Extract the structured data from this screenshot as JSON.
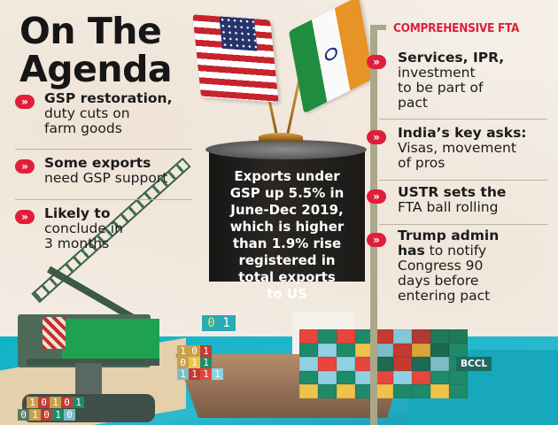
{
  "title": {
    "line1": "On The",
    "line2": "Agenda"
  },
  "left_items": [
    {
      "bold": "GSP restoration,",
      "rest_lines": [
        "duty cuts on",
        "farm goods"
      ]
    },
    {
      "bold": "Some exports",
      "rest_lines": [
        "need GSP support"
      ]
    },
    {
      "bold": "Likely to",
      "rest_lines": [
        "conclude in",
        "3 months"
      ]
    }
  ],
  "fta": {
    "heading": "COMPREHENSIVE FTA",
    "items": [
      {
        "bold": "Services, IPR,",
        "rest_lines": [
          "investment",
          "to be part of",
          "pact"
        ]
      },
      {
        "bold": "India’s key asks:",
        "rest_lines": [
          "Visas, movement",
          "of pros"
        ]
      },
      {
        "bold": "USTR sets the",
        "rest_lines": [
          "FTA ball rolling"
        ]
      },
      {
        "bold": "Trump admin",
        "bold2": "has",
        "rest_lines": [
          "to notify",
          "Congress 90",
          "days before",
          "entering pact"
        ]
      }
    ]
  },
  "center_box": {
    "lines": [
      "Exports under",
      "GSP up 5.5% in",
      "June-Dec 2019,",
      "which is higher",
      "than 1.9% rise",
      "registered in",
      "total exports",
      "to US"
    ]
  },
  "bullet_icon": "double-chevron-right-icon",
  "colors": {
    "accent_red": "#e01e3c",
    "background": "#f4eee6",
    "tower": "#1f1c1a",
    "sea": "#1ab2c6",
    "crane_green": "#1ea24f"
  },
  "decor": {
    "cube_label": [
      "0",
      "1"
    ],
    "crane_bins": [
      "1",
      "0",
      "1",
      "0",
      "1",
      "0",
      "1",
      "0",
      "1",
      "0"
    ],
    "ship_bins": [
      "1",
      "0",
      "1",
      "0",
      "0",
      "1",
      "0",
      "1",
      "1",
      "0",
      "1",
      "1",
      "1",
      "0",
      "0",
      "1"
    ]
  },
  "container_colors": [
    "#e8453c",
    "#1f8a6a",
    "#e8453c",
    "#1f8a6a",
    "#c43a30",
    "#82c8d6",
    "#b33a33",
    "#1f7a5a",
    "#1f7a5a",
    "#1f8a6a",
    "#8fd1e3",
    "#1f8a6a",
    "#efc24a",
    "#7bbcc5",
    "#c43a30",
    "#d9a53a",
    "#1a6a52",
    "#1f8a6a",
    "#8fd1e3",
    "#e8453c",
    "#8fd1e3",
    "#e8453c",
    "#1f6a52",
    "#c43a30",
    "#1f6a52",
    "#7bbcc5",
    "#1f8a6a",
    "#1f8a6a",
    "#8fd1e3",
    "#1f8a6a",
    "#8fd1e3",
    "#e8453c",
    "#8fd1e3",
    "#e8453c",
    "#1f8a6a",
    "#1f8a6a",
    "#efc24a",
    "#1f8a6a",
    "#efc24a",
    "#1f8a6a",
    "#efc24a",
    "#1f8a6a",
    "#1f8a6a",
    "#efc24a",
    "#1f8a6a"
  ],
  "credit": "BCCL"
}
